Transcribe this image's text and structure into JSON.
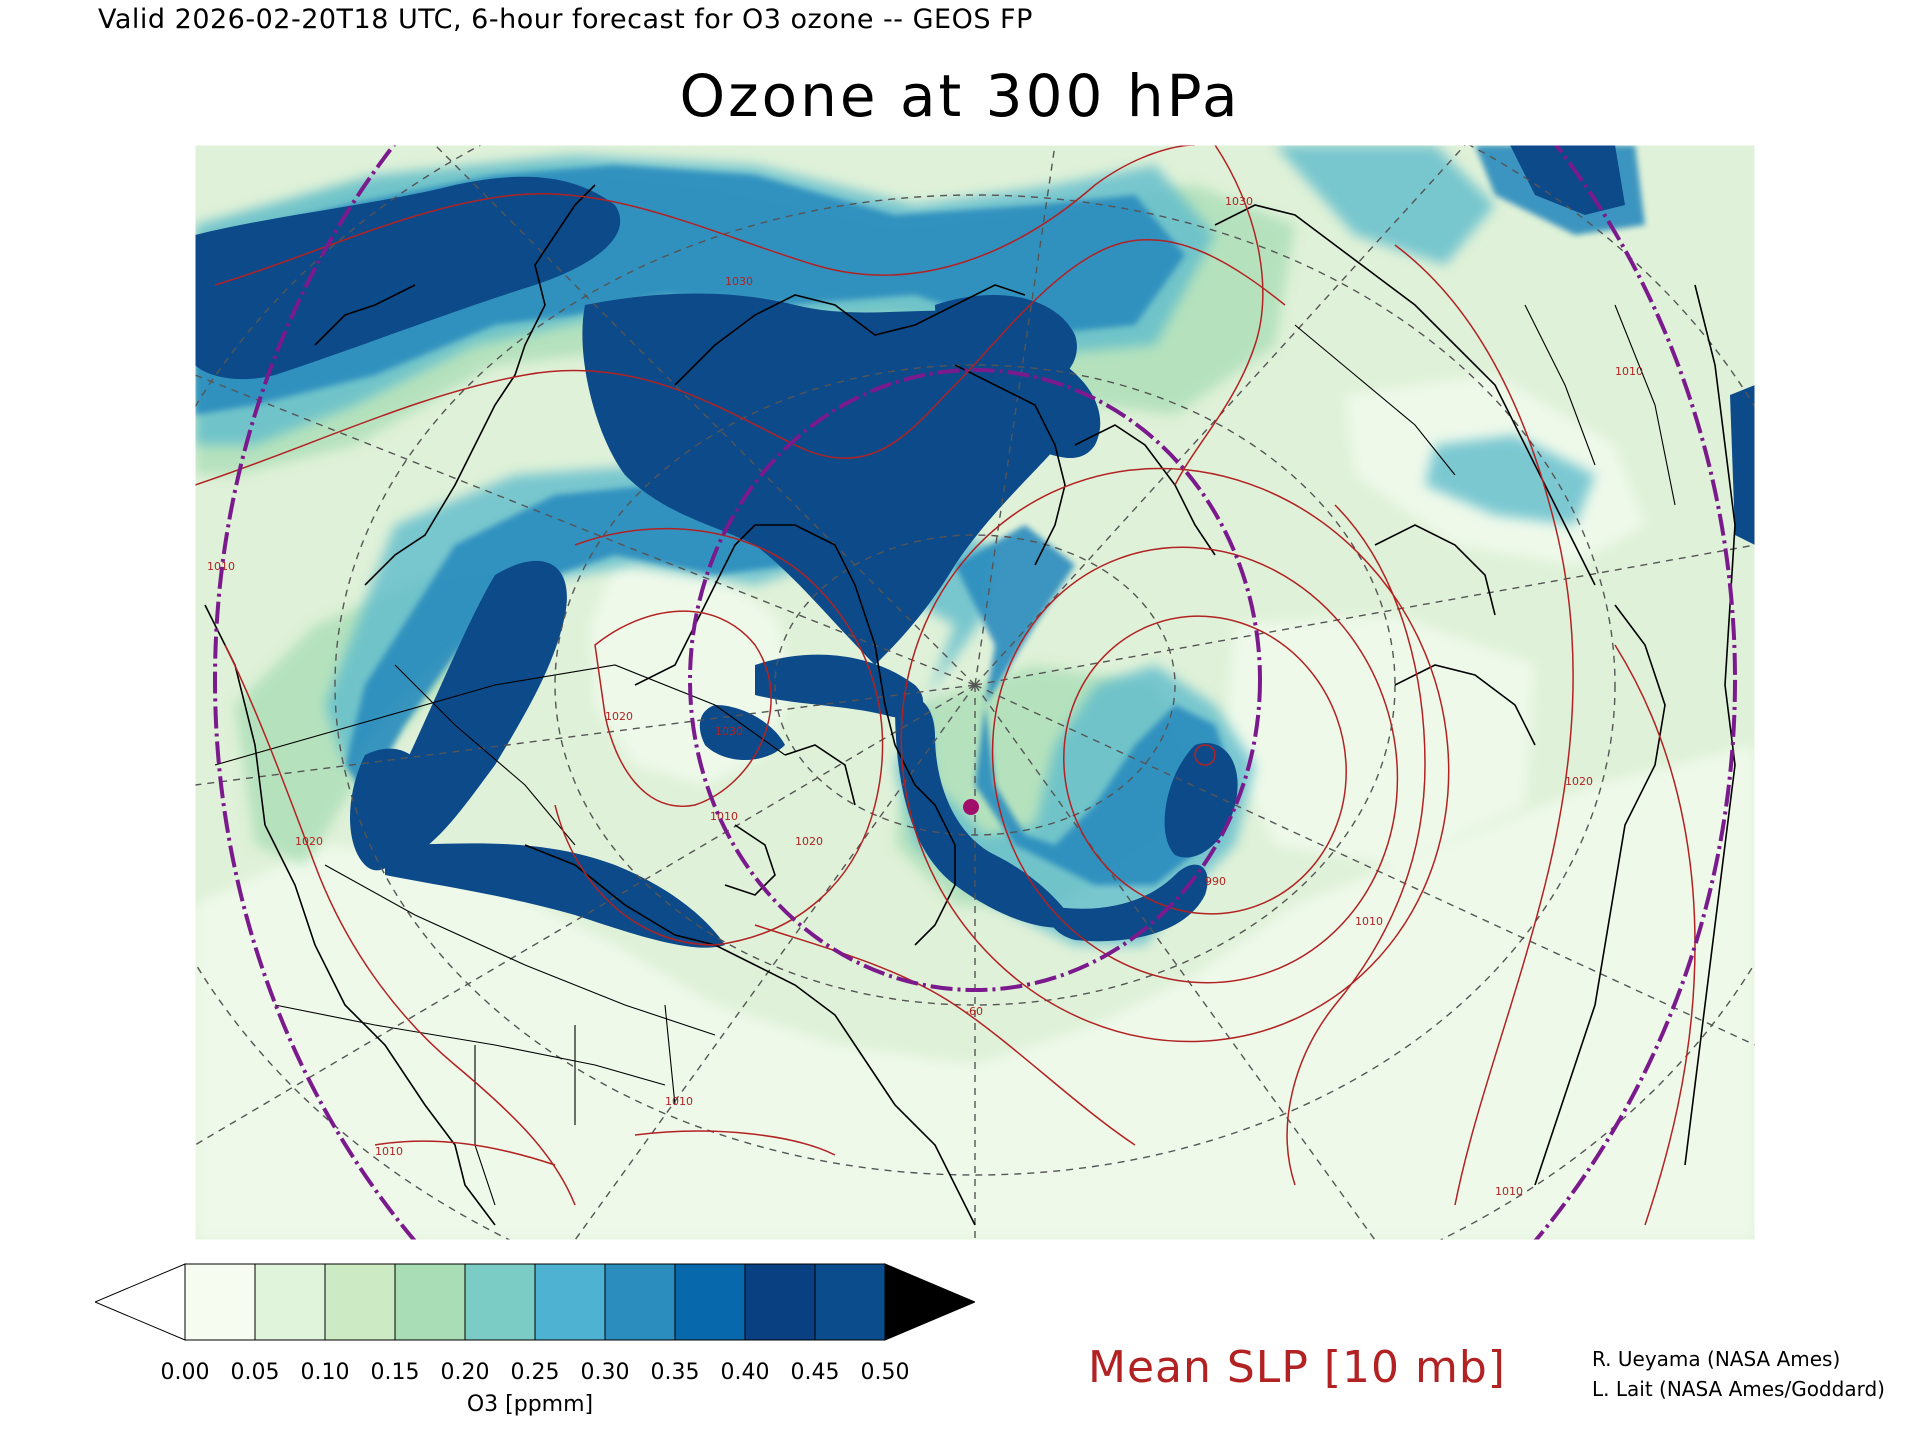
{
  "header": {
    "valid_line": "Valid 2026-02-20T18 UTC, 6-hour forecast for O3 ozone -- GEOS FP",
    "title": "Ozone at 300 hPa"
  },
  "colorbar": {
    "ticks": [
      "0.00",
      "0.05",
      "0.10",
      "0.15",
      "0.20",
      "0.25",
      "0.30",
      "0.35",
      "0.40",
      "0.45",
      "0.50"
    ],
    "colors": [
      "#f7fcf0",
      "#e0f3db",
      "#ccebc5",
      "#a8ddb5",
      "#7bccc4",
      "#4eb3d3",
      "#2b8cbe",
      "#0868ac",
      "#084081",
      "#0b4c8c"
    ],
    "under_color": "#ffffff",
    "over_color": "#000000",
    "units": "O3 [ppmm]"
  },
  "overlay": {
    "label": "Mean SLP [10 mb]",
    "color": "#b22222",
    "contour_labels": [
      "1010",
      "1020",
      "1030",
      "1010",
      "1020",
      "1010",
      "1020",
      "1030",
      "990",
      "1010",
      "1010",
      "1010",
      "1020",
      "1030",
      "-60",
      "1010"
    ]
  },
  "credits": [
    "R. Ueyama (NASA Ames)",
    "L. Lait (NASA Ames/Goddard)"
  ],
  "map_colors": {
    "background": "#dff1d8",
    "low": "#ecf8e6",
    "mid": "#a8ddb5",
    "teal": "#5fbccc",
    "blue": "#2b8cbe",
    "dark": "#0c4a8a",
    "slp": "#b22222",
    "tropopause": "#7b1a8c",
    "grid": "#555555",
    "coast": "#000000"
  }
}
